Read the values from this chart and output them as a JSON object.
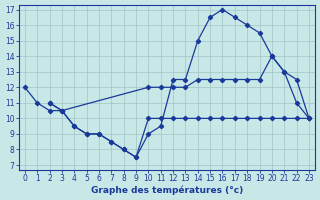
{
  "title": "Graphe des températures (°c)",
  "bg_color": "#c8e8e8",
  "line_color": "#1a3a9a",
  "grid_color": "#a0c4c4",
  "xlim": [
    0,
    23
  ],
  "ylim": [
    7,
    17
  ],
  "xticks": [
    0,
    1,
    2,
    3,
    4,
    5,
    6,
    7,
    8,
    9,
    10,
    11,
    12,
    13,
    14,
    15,
    16,
    17,
    18,
    19,
    20,
    21,
    22,
    23
  ],
  "yticks": [
    7,
    8,
    9,
    10,
    11,
    12,
    13,
    14,
    15,
    16,
    17
  ],
  "line1_x": [
    0,
    1,
    2,
    3,
    10,
    11,
    12,
    13,
    14,
    15,
    16,
    17,
    18,
    19,
    20,
    21,
    22,
    23
  ],
  "line1_y": [
    12,
    11,
    10.5,
    10.5,
    12,
    12,
    12,
    12,
    12.5,
    12.5,
    12.5,
    12.5,
    12.5,
    12.5,
    14,
    13,
    12.5,
    10
  ],
  "line2_x": [
    2,
    3,
    4,
    5,
    6,
    7,
    8,
    9,
    10,
    11,
    12,
    13,
    14,
    15,
    16,
    17,
    18,
    19,
    20,
    21,
    22,
    23
  ],
  "line2_y": [
    11,
    10.5,
    9.5,
    9.0,
    9.0,
    8.5,
    8.0,
    7.5,
    10,
    10,
    10,
    10,
    10,
    10,
    10,
    10,
    10,
    10,
    10,
    10,
    10,
    10
  ],
  "line3_x": [
    2,
    3,
    4,
    5,
    6,
    7,
    8,
    9,
    10,
    11,
    12,
    13,
    14,
    15,
    16,
    17,
    18,
    19,
    20,
    21,
    22,
    23
  ],
  "line3_y": [
    11,
    10.5,
    9.5,
    9.0,
    9.0,
    8.5,
    8.0,
    7.5,
    9.0,
    9.5,
    12.5,
    12.5,
    15,
    16.5,
    17,
    16.5,
    16,
    15.5,
    14,
    13,
    11,
    10
  ]
}
